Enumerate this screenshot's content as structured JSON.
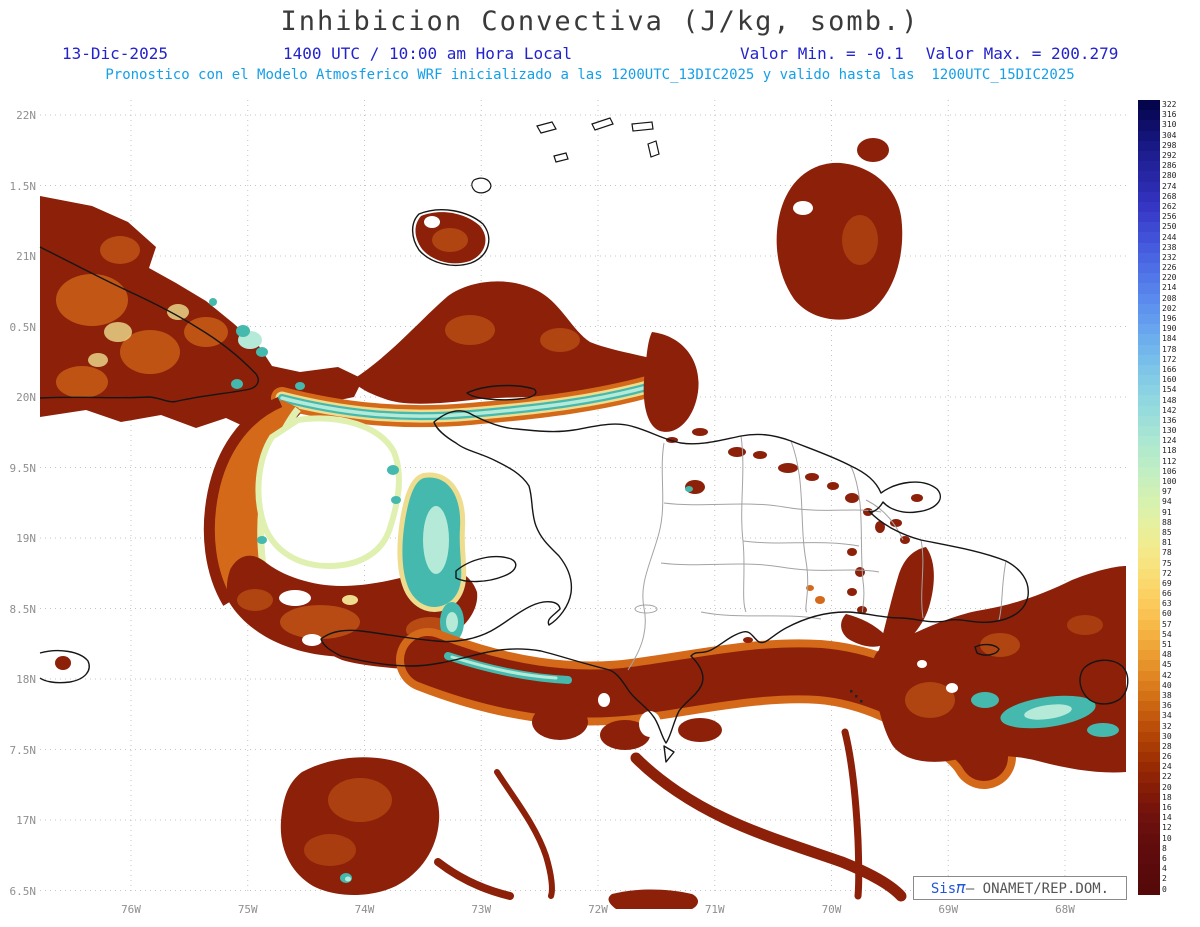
{
  "header": {
    "title": "Inhibicion Convectiva (J/kg, somb.)",
    "date": "13-Dic-2025",
    "time": "1400 UTC / 10:00 am Hora Local",
    "min_label": "Valor Min. = -0.1",
    "max_label": "Valor Max. = 200.279",
    "forecast": "Pronostico con el Modelo Atmosferico WRF inicializado a las 1200UTC_13DIC2025 y valido hasta las  1200UTC_15DIC2025"
  },
  "axes": {
    "lat_labels": [
      "22N",
      "1.5N",
      "21N",
      "0.5N",
      "20N",
      "9.5N",
      "19N",
      "8.5N",
      "18N",
      "7.5N",
      "17N",
      "6.5N"
    ],
    "lon_labels": [
      "76W",
      "75W",
      "74W",
      "73W",
      "72W",
      "71W",
      "70W",
      "69W",
      "68W"
    ]
  },
  "colorbar": {
    "unit": "J/kg",
    "values": [
      322,
      316,
      310,
      304,
      298,
      292,
      286,
      280,
      274,
      268,
      262,
      256,
      250,
      244,
      238,
      232,
      226,
      220,
      214,
      208,
      202,
      196,
      190,
      184,
      178,
      172,
      166,
      160,
      154,
      148,
      142,
      136,
      130,
      124,
      118,
      112,
      106,
      100,
      97,
      94,
      91,
      88,
      85,
      81,
      78,
      75,
      72,
      69,
      66,
      63,
      60,
      57,
      54,
      51,
      48,
      45,
      42,
      40,
      38,
      36,
      34,
      32,
      30,
      28,
      26,
      24,
      22,
      20,
      18,
      16,
      14,
      12,
      10,
      8,
      6,
      4,
      2,
      0
    ],
    "colors": [
      "#05054e",
      "#0a0a5c",
      "#0f0f6a",
      "#141478",
      "#191985",
      "#1e1e90",
      "#22229b",
      "#2727a6",
      "#2b2bb0",
      "#3030ba",
      "#3536c3",
      "#393fcb",
      "#3e49d2",
      "#4252d8",
      "#465cde",
      "#4a65e2",
      "#4e6ee6",
      "#5277e9",
      "#5681eb",
      "#5a8aed",
      "#5e93ee",
      "#639cee",
      "#68a5ee",
      "#6daeed",
      "#72b6ec",
      "#78beea",
      "#7ec5e8",
      "#84cce6",
      "#8ad2e3",
      "#91d7e0",
      "#97dcdd",
      "#9ee0d9",
      "#a5e4d5",
      "#ace7d1",
      "#b3eacc",
      "#baecc7",
      "#c1eec2",
      "#c9efbc",
      "#d0f0b6",
      "#d7f1af",
      "#def1a8",
      "#e5f0a1",
      "#ebee99",
      "#f0ec91",
      "#f4e888",
      "#f7e37f",
      "#f9de76",
      "#fbd86d",
      "#fbd164",
      "#fbca5b",
      "#f9c252",
      "#f7ba49",
      "#f4b141",
      "#f0a739",
      "#eb9d31",
      "#e6922a",
      "#e08723",
      "#da7c1d",
      "#d37117",
      "#cb6512",
      "#c35a0d",
      "#bb4f09",
      "#b24506",
      "#a93b04",
      "#a03203",
      "#972a03",
      "#8e2305",
      "#861d07",
      "#7e1809",
      "#76140b",
      "#6f110c",
      "#690f0d",
      "#640d0d",
      "#600c0d",
      "#5d0b0c",
      "#5a0a0b",
      "#580a0a",
      "#560909"
    ]
  },
  "attribution": {
    "sis": "Sis",
    "pi": "π",
    "rest": "– ONAMET/REP.DOM."
  },
  "colors": {
    "header_blue": "#2323cc",
    "header_cyan": "#149fe8",
    "title_gray": "#3a3a3a",
    "axis_gray": "#8f8f8f",
    "shade_dark_red": "#8c2009",
    "shade_orange": "#d4691a",
    "shade_yellow": "#eedd8e",
    "shade_teal": "#45b9ae",
    "shade_pale_cyan": "#b5ead8",
    "shade_pale_green": "#dff0b0",
    "attribution_blue": "#2256d6",
    "attribution_gray": "#555555"
  }
}
